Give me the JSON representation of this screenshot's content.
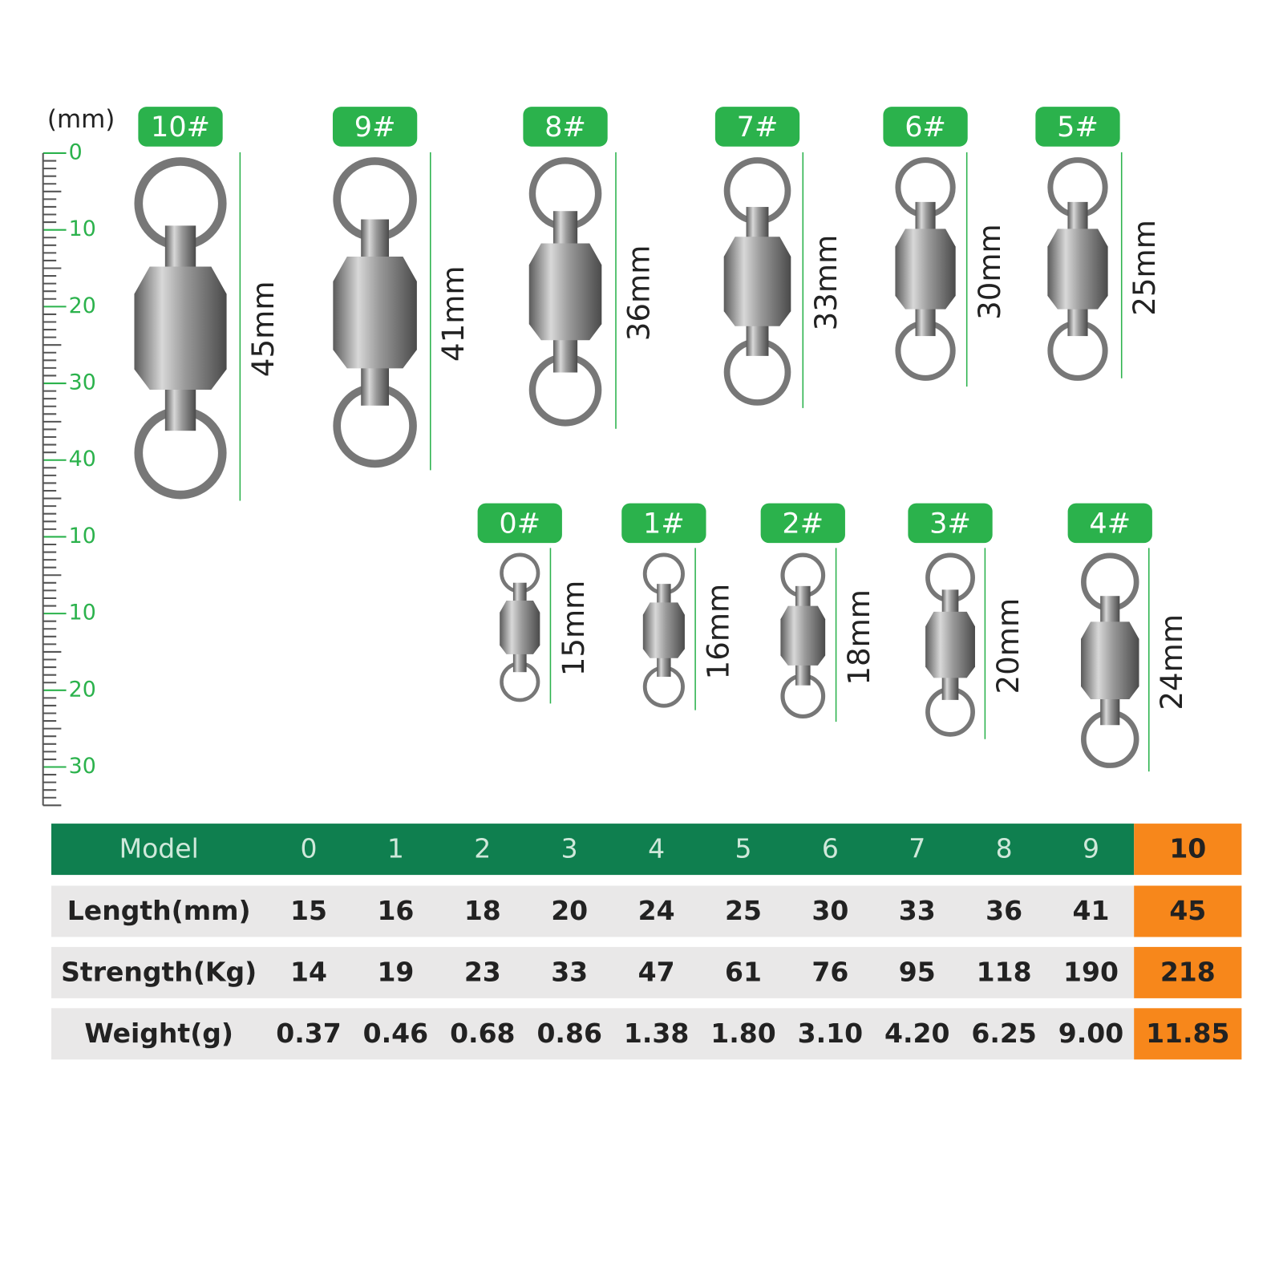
{
  "unit": "(mm)",
  "ruler": {
    "labels": [
      "0",
      "10",
      "20",
      "30",
      "40",
      "10",
      "10",
      "20",
      "30"
    ]
  },
  "swivels_top": [
    {
      "tag": "10#",
      "length": "45mm"
    },
    {
      "tag": "9#",
      "length": "41mm"
    },
    {
      "tag": "8#",
      "length": "36mm"
    },
    {
      "tag": "7#",
      "length": "33mm"
    },
    {
      "tag": "6#",
      "length": "30mm"
    },
    {
      "tag": "5#",
      "length": "25mm"
    }
  ],
  "swivels_bottom": [
    {
      "tag": "0#",
      "length": "15mm"
    },
    {
      "tag": "1#",
      "length": "16mm"
    },
    {
      "tag": "2#",
      "length": "18mm"
    },
    {
      "tag": "3#",
      "length": "20mm"
    },
    {
      "tag": "4#",
      "length": "24mm"
    }
  ],
  "table": {
    "header": [
      "Model",
      "0",
      "1",
      "2",
      "3",
      "4",
      "5",
      "6",
      "7",
      "8",
      "9",
      "10"
    ],
    "rows": [
      [
        "Length(mm)",
        "15",
        "16",
        "18",
        "20",
        "24",
        "25",
        "30",
        "33",
        "36",
        "41",
        "45"
      ],
      [
        "Strength(Kg)",
        "14",
        "19",
        "23",
        "33",
        "47",
        "61",
        "76",
        "95",
        "118",
        "190",
        "218"
      ],
      [
        "Weight(g)",
        "0.37",
        "0.46",
        "0.68",
        "0.86",
        "1.38",
        "1.80",
        "3.10",
        "4.20",
        "6.25",
        "9.00",
        "11.85"
      ]
    ]
  }
}
